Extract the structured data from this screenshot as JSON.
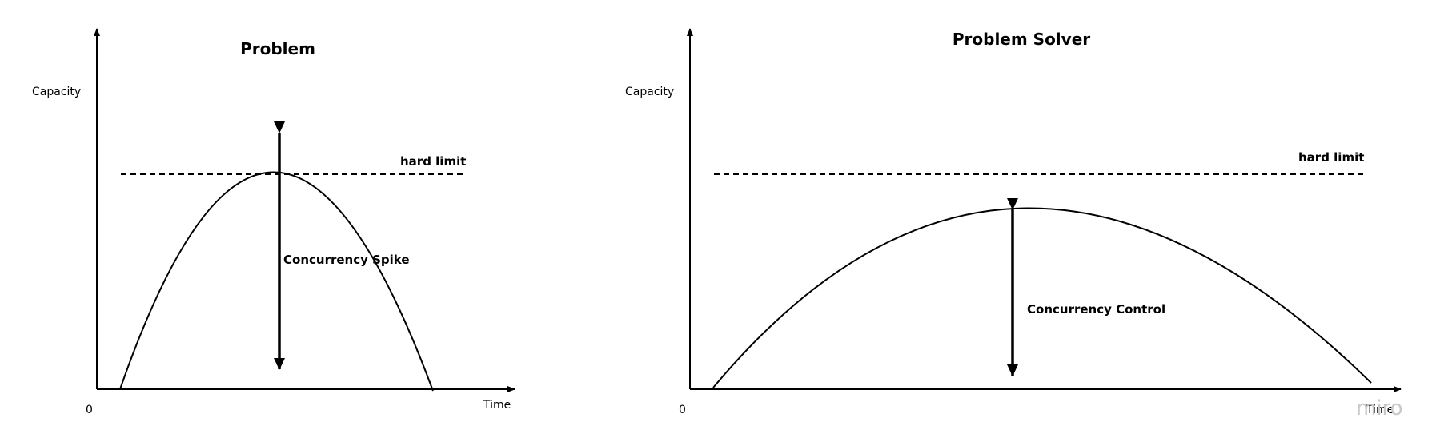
{
  "left_panel": {
    "title": "Problem",
    "y_axis_label": "Capacity",
    "x_axis_label": "Time",
    "origin_label": "0",
    "limit_label": "hard limit",
    "arrow_label": "Concurrency Spike"
  },
  "right_panel": {
    "title": "Problem Solver",
    "y_axis_label": "Capacity",
    "x_axis_label": "Time",
    "origin_label": "0",
    "limit_label": "hard limit",
    "arrow_label": "Concurrency Control"
  },
  "watermark": "miro",
  "colors": {
    "line": "#000000",
    "watermark": "#c8c8c8"
  }
}
